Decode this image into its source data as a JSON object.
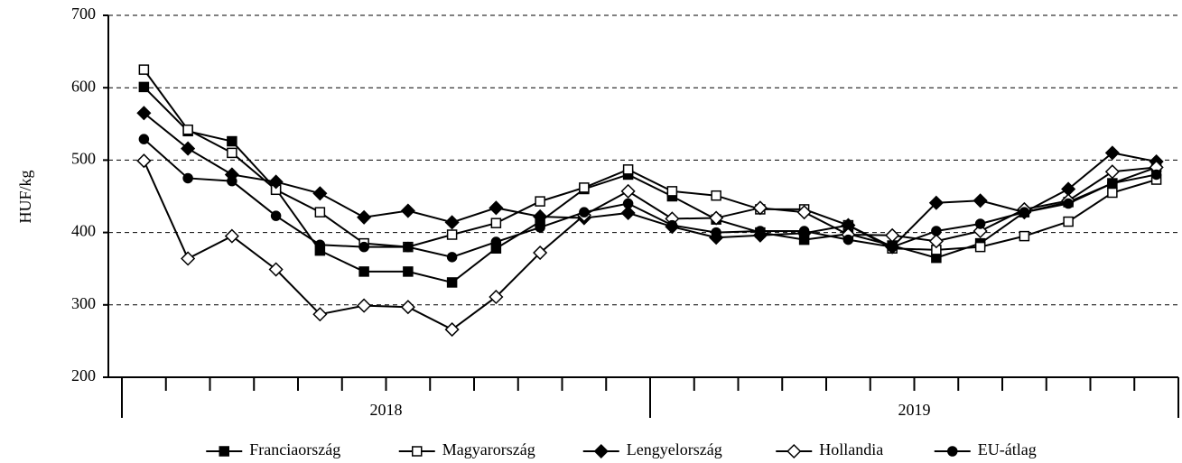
{
  "chart_data": {
    "type": "line",
    "y_label": "HUF/kg",
    "categories": [
      null,
      null,
      null,
      null,
      null,
      null,
      null,
      null,
      null,
      null,
      null,
      null,
      null,
      null,
      null,
      null,
      null,
      null,
      null,
      null,
      null,
      null,
      null,
      null
    ],
    "year_labels": [
      "2018",
      "2019"
    ],
    "ylim": [
      200,
      700
    ],
    "yticks": [
      200,
      300,
      400,
      500,
      600,
      700
    ],
    "grid": true,
    "legend": "bottom",
    "series": [
      {
        "name": "Franciaország",
        "color": "#000000",
        "marker": "square",
        "filled": true,
        "values": [
          601,
          540,
          526,
          460,
          375,
          346,
          346,
          331,
          378,
          415,
          460,
          480,
          450,
          418,
          400,
          390,
          398,
          382,
          365,
          385,
          428,
          442,
          468,
          490
        ]
      },
      {
        "name": "Magyarország",
        "color": "#000000",
        "marker": "square",
        "filled": false,
        "values": [
          625,
          542,
          510,
          459,
          428,
          385,
          380,
          397,
          413,
          443,
          462,
          487,
          457,
          451,
          432,
          432,
          410,
          378,
          376,
          380,
          395,
          415,
          455,
          473
        ]
      },
      {
        "name": "Lengyelország",
        "color": "#000000",
        "marker": "diamond",
        "filled": true,
        "values": [
          565,
          516,
          480,
          470,
          454,
          421,
          430,
          414,
          434,
          422,
          420,
          427,
          408,
          393,
          396,
          399,
          410,
          380,
          441,
          444,
          428,
          460,
          510,
          498
        ]
      },
      {
        "name": "Hollandia",
        "color": "#000000",
        "marker": "diamond",
        "filled": false,
        "values": [
          499,
          364,
          395,
          349,
          287,
          299,
          297,
          266,
          311,
          372,
          424,
          457,
          419,
          420,
          434,
          428,
          397,
          396,
          388,
          402,
          432,
          444,
          484,
          490
        ]
      },
      {
        "name": "EU-átlag",
        "color": "#000000",
        "marker": "circle",
        "filled": true,
        "values": [
          529,
          475,
          471,
          423,
          383,
          380,
          380,
          366,
          387,
          407,
          428,
          440,
          410,
          400,
          402,
          402,
          390,
          380,
          402,
          412,
          428,
          440,
          468,
          480
        ]
      }
    ]
  }
}
